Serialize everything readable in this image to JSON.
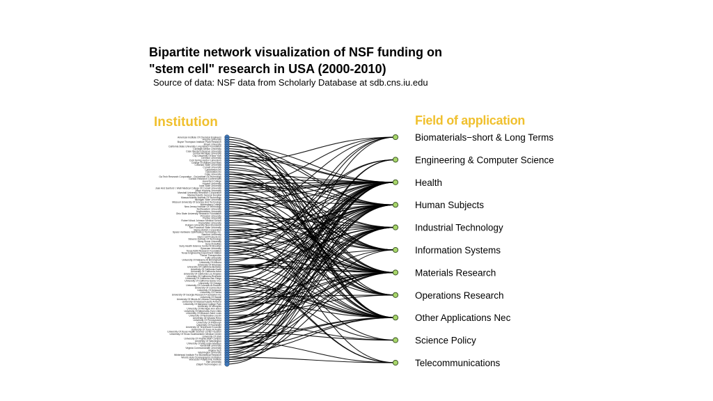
{
  "title_line1": "Bipartite network visualization of NSF funding on",
  "title_line2": "\"stem cell\" research in USA (2000-2010)",
  "subtitle": "Source of data: NSF data from Scholarly Database at sdb.cns.iu.edu",
  "left_header": "Institution",
  "right_header": "Field of application",
  "colors": {
    "header": "#f0c02e",
    "institution_node": "#3f77b8",
    "field_node": "#a8d66b",
    "edge": "#000000"
  },
  "institutions": [
    "American Institute Of Chemical Engineers",
    "Arizona University",
    "Boyce Thompson Institute Plant Research",
    "Brown University",
    "California State University Long Beach Foundation",
    "Carnegie-Mellon University",
    "Case Western Reserve University",
    "Central Michigan University",
    "City University Of New York",
    "Clemson University",
    "Cold Spring Harbor Laboratory",
    "College Of William And Mary",
    "Colorado State University",
    "Cornell University",
    "Cytokinetics Inc",
    "Cytonostics Inc",
    "Duke University",
    "Ga Tech Research Corporation - Ga Institute Of Technology",
    "Gordon Research Conferences",
    "Haverford College",
    "Howard University",
    "Iowa State University",
    "Joan And Sanford I. Weill Medical College Of Cornell University",
    "Johns Hopkins University",
    "Marshall University Research Corporation",
    "Massachusetts General Hospital",
    "Massachusetts Institute Of Technology",
    "Michigan State University",
    "Missouri University Of Science And Technology",
    "Muhlenberg College",
    "New Jersey Institute Of Technology",
    "Northeastern University",
    "Northwestern University",
    "Ohio State University Research Foundation",
    "Princeton University",
    "Purdue University",
    "Robert Wood Johnson Medical School",
    "Rockefeller University",
    "Rutgers University New Brunswick",
    "San Francisco State University",
    "Sigma-Aldrich Corporation",
    "Space Hardware Optimization Technology, Inc.",
    "Stanford University",
    "Stem Cell Products Inc",
    "Stevens Institute Of Technology",
    "Stony Brook University",
    "Suny At Buffalo",
    "Suny Health Science Center At Brooklyn",
    "Syracuse University",
    "Texas A&M Research Foundation",
    "Texas Engineering Experiment Station",
    "Tissue Therapeutics",
    "Tufts University",
    "University Of Alabama At Birmingham",
    "University Of Arizona",
    "University Of Arkansas",
    "University Of California-Berkeley",
    "University Of California-Davis",
    "University Of California-Irvine",
    "University Of California-Los Angeles",
    "University Of California-Riverside",
    "University Of California-San Diego",
    "University Of California-Santa Cruz",
    "University Of Chicago",
    "University Of Colorado At Boulder",
    "University Of Connecticut",
    "University Of Delaware",
    "University Of Florida",
    "University Of Georgia Research Foundation Inc",
    "University Of Hawaii",
    "University Of Illinois At Urbana-Champaign",
    "University Of Massachusetts Amherst",
    "University Of Maryland College Park",
    "University Of Memphis",
    "University Of Michigan Ann Arbor",
    "University Of Minnesota-Twin Cities",
    "University Of Missouri-Saint Louis",
    "University Of Nebraska-Lincoln",
    "University Of Nevada Reno",
    "University Of Pennsylvania",
    "University Of Pittsburgh",
    "University Of Rochester",
    "University Of Tennessee Knoxville",
    "University Of Texas At Austin",
    "University Of Texas Health Science Center Houston",
    "University Of Texas Southwestern Medical Center",
    "University Of Utah",
    "University Of Virginia Main Campus",
    "University Of Washington",
    "University Of Wisconsin-Madison",
    "Vanderbilt University",
    "Virginia Commonwealth University",
    "Virginia Tech",
    "Washington University",
    "Whitehead Institute For Biomedical Research",
    "Woods Hole Oceanographic Institution",
    "Worcester Polytechnic Institute",
    "Yale University",
    "Zdapril Technologies Llc"
  ],
  "fields": [
    "Biomaterials−short & Long Terms",
    "Engineering & Computer Science",
    "Health",
    "Human Subjects",
    "Industrial Technology",
    "Information Systems",
    "Materials Research",
    "Operations Research",
    "Other Applications Nec",
    "Science Policy",
    "Telecommunications"
  ]
}
